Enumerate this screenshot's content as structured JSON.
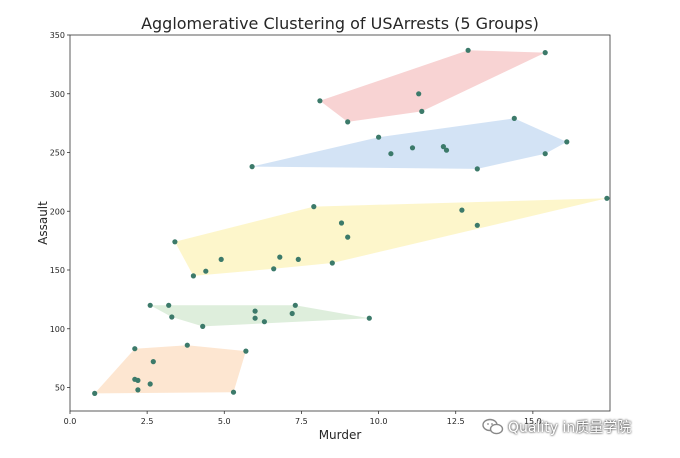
{
  "chart_data": {
    "type": "scatter",
    "title": "Agglomerative Clustering of USArrests (5 Groups)",
    "xlabel": "Murder",
    "ylabel": "Assault",
    "xlim": [
      0.0,
      17.5
    ],
    "ylim": [
      30,
      350
    ],
    "x_ticks": [
      "0.0",
      "2.5",
      "5.0",
      "7.5",
      "10.0",
      "12.5",
      "15.0"
    ],
    "x_tick_values": [
      0,
      2.5,
      5,
      7.5,
      10,
      12.5,
      15
    ],
    "y_ticks": [
      "50",
      "100",
      "150",
      "200",
      "250",
      "300",
      "350"
    ],
    "y_tick_values": [
      50,
      100,
      150,
      200,
      250,
      300,
      350
    ],
    "grid": false,
    "legend": "none",
    "series": [
      {
        "color": "#f4b6b6",
        "points": [
          [
            8.1,
            294
          ],
          [
            9.0,
            276
          ],
          [
            11.3,
            300
          ],
          [
            11.4,
            285
          ],
          [
            12.9,
            337
          ],
          [
            15.4,
            335
          ]
        ]
      },
      {
        "color": "#b6d0ee",
        "points": [
          [
            5.9,
            238
          ],
          [
            10.0,
            263
          ],
          [
            10.4,
            249
          ],
          [
            11.1,
            254
          ],
          [
            12.1,
            255
          ],
          [
            12.2,
            252
          ],
          [
            13.2,
            236
          ],
          [
            14.4,
            279
          ],
          [
            15.4,
            249
          ],
          [
            16.1,
            259
          ]
        ]
      },
      {
        "color": "#fbf0a8",
        "points": [
          [
            3.4,
            174
          ],
          [
            4.0,
            145
          ],
          [
            4.4,
            149
          ],
          [
            4.9,
            159
          ],
          [
            6.6,
            151
          ],
          [
            6.8,
            161
          ],
          [
            7.4,
            159
          ],
          [
            7.9,
            204
          ],
          [
            8.5,
            156
          ],
          [
            8.8,
            190
          ],
          [
            9.0,
            178
          ],
          [
            12.7,
            201
          ],
          [
            13.2,
            188
          ],
          [
            17.4,
            211
          ]
        ]
      },
      {
        "color": "#c8e3c4",
        "points": [
          [
            2.6,
            120
          ],
          [
            3.2,
            120
          ],
          [
            3.3,
            110
          ],
          [
            4.3,
            102
          ],
          [
            6.0,
            115
          ],
          [
            6.0,
            109
          ],
          [
            6.3,
            106
          ],
          [
            7.2,
            113
          ],
          [
            7.3,
            120
          ],
          [
            9.7,
            109
          ]
        ]
      },
      {
        "color": "#fbd6b3",
        "points": [
          [
            0.8,
            45
          ],
          [
            2.1,
            83
          ],
          [
            2.1,
            57
          ],
          [
            2.2,
            56
          ],
          [
            2.2,
            48
          ],
          [
            2.6,
            53
          ],
          [
            2.7,
            72
          ],
          [
            3.8,
            86
          ],
          [
            5.3,
            46
          ],
          [
            5.7,
            81
          ]
        ]
      }
    ]
  },
  "watermark": {
    "text": "Quality in质量学院",
    "icon": "wechat-icon"
  }
}
